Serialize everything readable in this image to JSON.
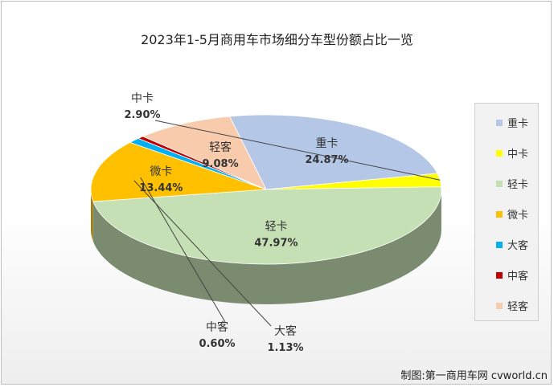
{
  "title": "2023年1-5月商用车市场细分车型份额占比一览",
  "credit": "制图:第一商用车网 cvworld.cn",
  "chart_data": {
    "type": "pie",
    "title": "2023年1-5月商用车市场细分车型份额占比一览",
    "legend_position": "right",
    "slices": [
      {
        "name": "重卡",
        "value": 24.87,
        "label": "24.87%",
        "color": "#b4c7e7"
      },
      {
        "name": "中卡",
        "value": 2.9,
        "label": "2.90%",
        "color": "#ffff00"
      },
      {
        "name": "轻卡",
        "value": 47.97,
        "label": "47.97%",
        "color": "#c5e0b4"
      },
      {
        "name": "微卡",
        "value": 13.44,
        "label": "13.44%",
        "color": "#ffc000"
      },
      {
        "name": "大客",
        "value": 1.13,
        "label": "1.13%",
        "color": "#00b0f0"
      },
      {
        "name": "中客",
        "value": 0.6,
        "label": "0.60%",
        "color": "#c00000"
      },
      {
        "name": "轻客",
        "value": 9.08,
        "label": "9.08%",
        "color": "#f8cbad"
      }
    ]
  }
}
